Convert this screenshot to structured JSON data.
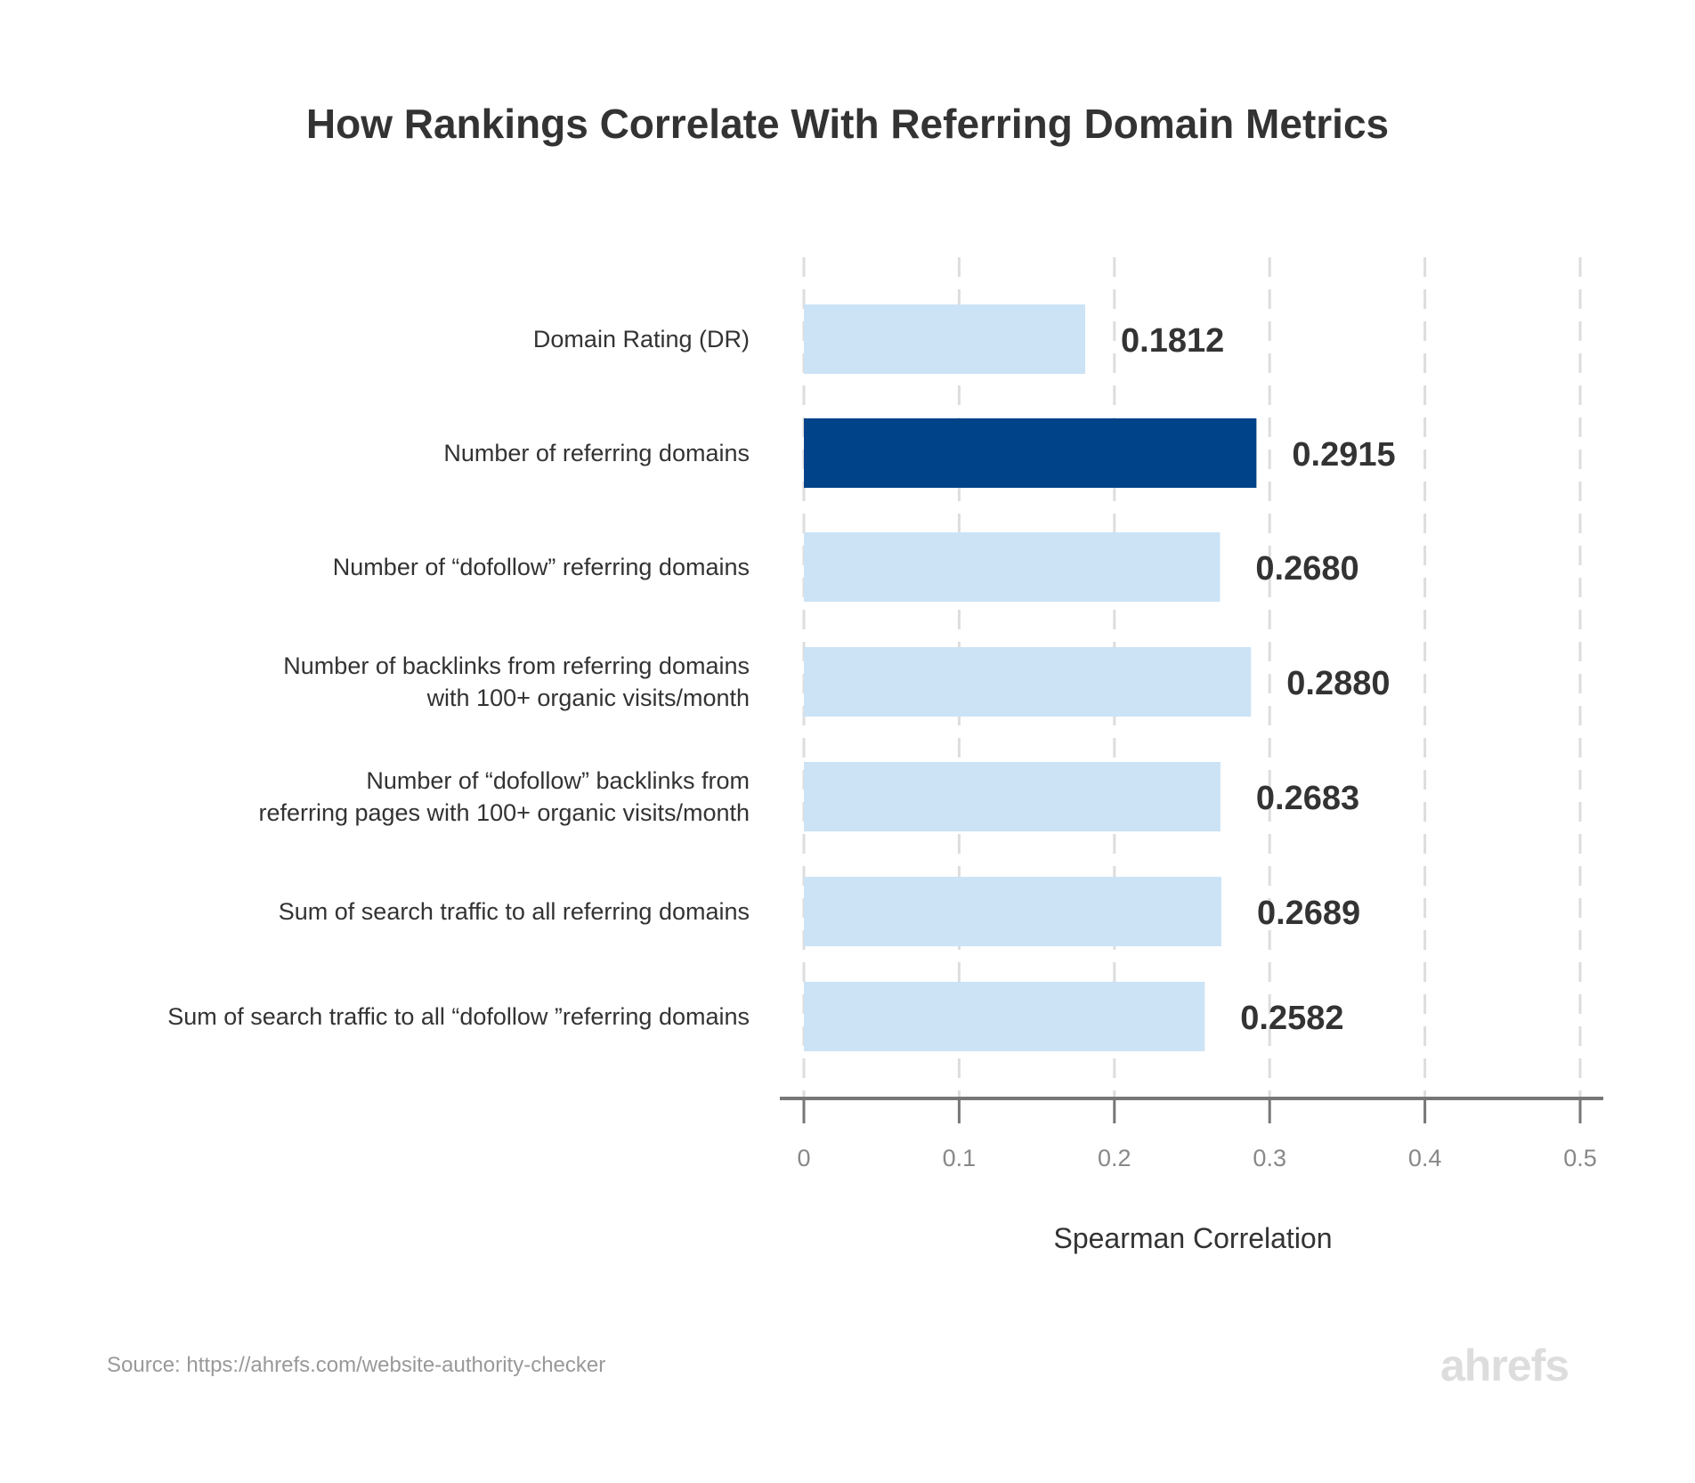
{
  "chart_data": {
    "type": "bar",
    "orientation": "horizontal",
    "title": "How Rankings Correlate With Referring Domain Metrics",
    "xlabel": "Spearman Correlation",
    "ylabel": "",
    "xlim": [
      0,
      0.5
    ],
    "xticks": [
      "0",
      "0.1",
      "0.2",
      "0.3",
      "0.4",
      "0.5"
    ],
    "grid": "vertical dashed",
    "categories": [
      [
        "Domain Rating (DR)"
      ],
      [
        "Number of referring domains"
      ],
      [
        "Number of “dofollow” referring domains"
      ],
      [
        "Number of backlinks from referring domains",
        "with 100+ organic visits/month"
      ],
      [
        "Number of “dofollow” backlinks from",
        "referring pages with 100+ organic visits/month"
      ],
      [
        "Sum of search traffic to all referring domains"
      ],
      [
        "Sum of search traffic to all “dofollow ”referring domains"
      ]
    ],
    "values": [
      0.1812,
      0.2915,
      0.268,
      0.288,
      0.2683,
      0.2689,
      0.2582
    ],
    "labels": [
      "0.1812",
      "0.2915",
      "0.2680",
      "0.2880",
      "0.2683",
      "0.2689",
      "0.2582"
    ],
    "highlight_index": 1,
    "colors": {
      "bar": "#cce3f6",
      "highlight": "#004388",
      "grid": "#dddddd",
      "axis": "#777777",
      "text": "#333333"
    }
  },
  "source": "Source: https://ahrefs.com/website-authority-checker",
  "logo": "ahrefs"
}
